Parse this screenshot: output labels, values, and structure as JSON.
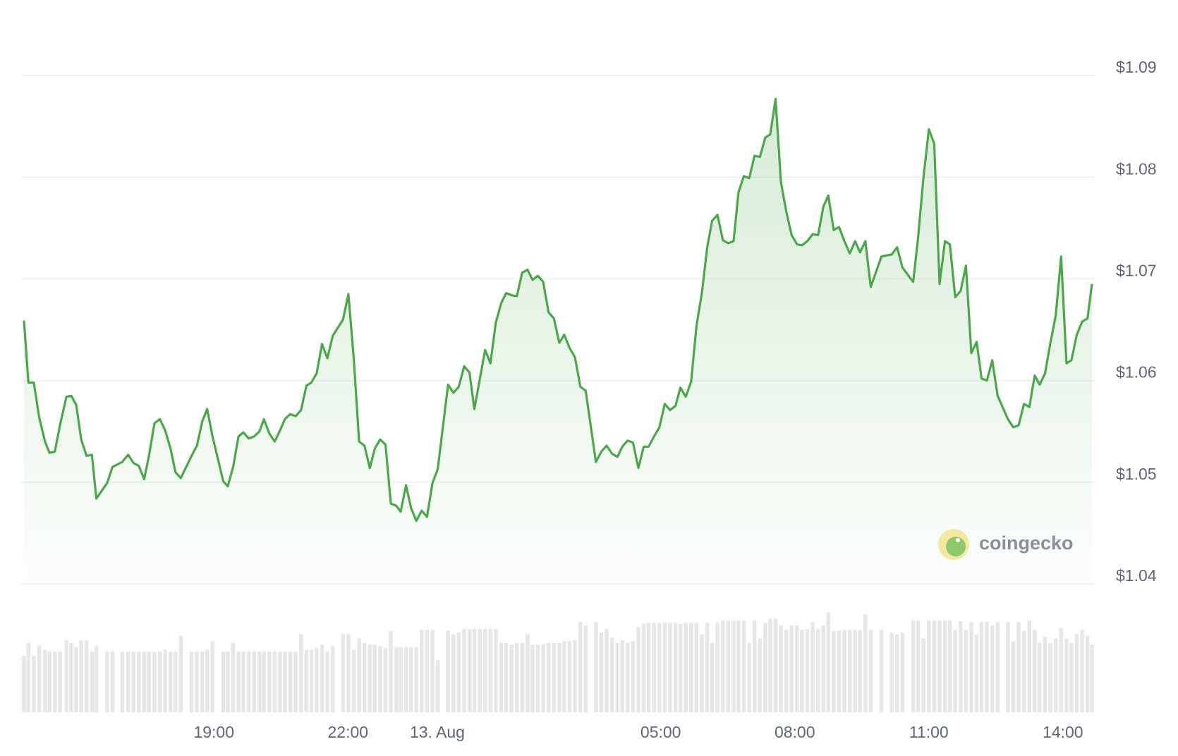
{
  "chart_data": {
    "type": "line",
    "watermark": "coingecko",
    "xlim": [
      14.75,
      38.65
    ],
    "xticks": [
      {
        "value": 19,
        "label": "19:00"
      },
      {
        "value": 22,
        "label": "22:00"
      },
      {
        "value": 24,
        "label": "13. Aug"
      },
      {
        "value": 29,
        "label": "05:00"
      },
      {
        "value": 32,
        "label": "08:00"
      },
      {
        "value": 35,
        "label": "11:00"
      },
      {
        "value": 38,
        "label": "14:00"
      }
    ],
    "ylim": [
      1.04,
      1.09
    ],
    "yticks": [
      {
        "value": 1.04,
        "label": "$1.04"
      },
      {
        "value": 1.05,
        "label": "$1.05"
      },
      {
        "value": 1.06,
        "label": "$1.06"
      },
      {
        "value": 1.07,
        "label": "$1.07"
      },
      {
        "value": 1.08,
        "label": "$1.08"
      },
      {
        "value": 1.09,
        "label": "$1.09"
      }
    ],
    "grid": true,
    "x": [
      14.75,
      14.85,
      14.97,
      15.09,
      15.22,
      15.32,
      15.44,
      15.56,
      15.7,
      15.81,
      15.92,
      16.03,
      16.15,
      16.27,
      16.37,
      16.61,
      16.73,
      16.95,
      17.08,
      17.2,
      17.32,
      17.44,
      17.55,
      17.67,
      17.79,
      17.91,
      18.03,
      18.14,
      18.26,
      18.5,
      18.62,
      18.74,
      18.85,
      18.97,
      19.21,
      19.31,
      19.43,
      19.55,
      19.66,
      19.78,
      19.9,
      20.02,
      20.12,
      20.24,
      20.36,
      20.48,
      20.59,
      20.71,
      20.83,
      20.95,
      21.07,
      21.18,
      21.3,
      21.42,
      21.54,
      21.66,
      21.89,
      22.01,
      22.13,
      22.25,
      22.37,
      22.49,
      22.6,
      22.72,
      22.84,
      22.96,
      23.08,
      23.18,
      23.3,
      23.41,
      23.53,
      23.65,
      23.77,
      23.89,
      24.01,
      24.24,
      24.36,
      24.48,
      24.6,
      24.72,
      24.83,
      24.95,
      25.07,
      25.19,
      25.31,
      25.43,
      25.54,
      25.66,
      25.78,
      25.9,
      26.02,
      26.13,
      26.25,
      26.37,
      26.49,
      26.61,
      26.73,
      26.84,
      26.96,
      27.08,
      27.2,
      27.32,
      27.55,
      27.67,
      27.79,
      27.91,
      28.03,
      28.14,
      28.26,
      28.38,
      28.5,
      28.62,
      28.73,
      28.85,
      28.97,
      29.09,
      29.21,
      29.33,
      29.44,
      29.56,
      29.68,
      29.8,
      29.92,
      30.04,
      30.15,
      30.27,
      30.39,
      30.51,
      30.63,
      30.74,
      30.86,
      30.98,
      31.1,
      31.22,
      31.34,
      31.45,
      31.57,
      31.69,
      31.81,
      31.93,
      32.05,
      32.16,
      32.28,
      32.4,
      32.52,
      32.64,
      32.75,
      32.87,
      32.99,
      33.11,
      33.23,
      33.35,
      33.46,
      33.58,
      33.7,
      33.94,
      34.17,
      34.29,
      34.41,
      34.65,
      34.76,
      34.88,
      35.0,
      35.12,
      35.24,
      35.36,
      35.47,
      35.59,
      35.71,
      35.83,
      35.95,
      36.07,
      36.18,
      36.3,
      36.42,
      36.54,
      36.77,
      36.89,
      37.01,
      37.13,
      37.25,
      37.37,
      37.48,
      37.6,
      37.72,
      37.84,
      37.96,
      38.08,
      38.19,
      38.31,
      38.43,
      38.55,
      38.65
    ],
    "series": [
      {
        "color": "#4aa84a",
        "values": [
          1.0659,
          1.0598,
          1.0598,
          1.0564,
          1.054,
          1.0529,
          1.053,
          1.0557,
          1.0584,
          1.0585,
          1.0576,
          1.0542,
          1.0526,
          1.0527,
          1.0484,
          1.0499,
          1.0515,
          1.052,
          1.0527,
          1.0519,
          1.0516,
          1.0503,
          1.0527,
          1.0558,
          1.0562,
          1.0551,
          1.0533,
          1.051,
          1.0504,
          1.0526,
          1.0536,
          1.056,
          1.0572,
          1.0545,
          1.0501,
          1.0496,
          1.0515,
          1.0545,
          1.0549,
          1.0543,
          1.0545,
          1.055,
          1.0562,
          1.0548,
          1.054,
          1.0551,
          1.0562,
          1.0567,
          1.0565,
          1.0571,
          1.0595,
          1.0598,
          1.0607,
          1.0636,
          1.0622,
          1.0644,
          1.066,
          1.0685,
          1.0622,
          1.054,
          1.0536,
          1.0514,
          1.0533,
          1.0542,
          1.0537,
          1.0479,
          1.0477,
          1.0471,
          1.0497,
          1.0475,
          1.0462,
          1.0472,
          1.0466,
          1.0499,
          1.0513,
          1.0596,
          1.0588,
          1.0594,
          1.0614,
          1.0608,
          1.0572,
          1.0601,
          1.063,
          1.0617,
          1.0657,
          1.0676,
          1.0686,
          1.0684,
          1.0683,
          1.0706,
          1.0709,
          1.0699,
          1.0703,
          1.0697,
          1.0667,
          1.0661,
          1.0637,
          1.0645,
          1.0632,
          1.0623,
          1.0594,
          1.059,
          1.052,
          1.053,
          1.0536,
          1.0528,
          1.0525,
          1.0535,
          1.0541,
          1.0539,
          1.0514,
          1.0535,
          1.0535,
          1.0545,
          1.0554,
          1.0577,
          1.0571,
          1.0575,
          1.0593,
          1.0584,
          1.0599,
          1.0654,
          1.0686,
          1.0731,
          1.0757,
          1.0763,
          1.0738,
          1.0735,
          1.0737,
          1.0785,
          1.0801,
          1.0799,
          1.0821,
          1.082,
          1.0839,
          1.0842,
          1.0877,
          1.0795,
          1.0766,
          1.0743,
          1.0734,
          1.0733,
          1.0737,
          1.0744,
          1.0743,
          1.0771,
          1.0782,
          1.0748,
          1.0751,
          1.0737,
          1.0725,
          1.0737,
          1.0726,
          1.0737,
          1.0692,
          1.0722,
          1.0724,
          1.0731,
          1.0711,
          1.0697,
          1.0741,
          1.08,
          1.0847,
          1.0833,
          1.0695,
          1.0737,
          1.0734,
          1.0682,
          1.0688,
          1.0713,
          1.0627,
          1.0638,
          1.0602,
          1.06,
          1.062,
          1.0585,
          1.0562,
          1.0554,
          1.0556,
          1.0577,
          1.0574,
          1.0605,
          1.0596,
          1.0607,
          1.0637,
          1.0664,
          1.0722,
          1.0617,
          1.062,
          1.0645,
          1.0658,
          1.0661,
          1.0695
        ]
      }
    ],
    "volume": {
      "color": "#e6e7ea",
      "ylim": [
        0,
        130
      ],
      "values": [
        65,
        80,
        65,
        77,
        72,
        70,
        70,
        70,
        83,
        80,
        75,
        83,
        83,
        70,
        76,
        70,
        70,
        70,
        70,
        70,
        70,
        70,
        70,
        70,
        70,
        72,
        70,
        70,
        88,
        70,
        70,
        70,
        72,
        82,
        70,
        70,
        80,
        70,
        70,
        70,
        70,
        70,
        70,
        70,
        70,
        70,
        70,
        70,
        70,
        90,
        72,
        72,
        74,
        78,
        70,
        76,
        90,
        90,
        72,
        85,
        80,
        78,
        78,
        76,
        74,
        94,
        75,
        75,
        75,
        75,
        75,
        95,
        95,
        95,
        60,
        94,
        90,
        92,
        96,
        96,
        96,
        96,
        96,
        96,
        96,
        80,
        80,
        78,
        80,
        80,
        90,
        78,
        78,
        78,
        80,
        80,
        80,
        82,
        82,
        83,
        104,
        100,
        104,
        92,
        96,
        86,
        80,
        83,
        80,
        82,
        98,
        102,
        103,
        103,
        103,
        103,
        103,
        103,
        102,
        103,
        103,
        103,
        90,
        103,
        80,
        103,
        106,
        106,
        106,
        106,
        106,
        80,
        106,
        85,
        103,
        108,
        108,
        100,
        95,
        100,
        100,
        95,
        96,
        104,
        96,
        100,
        115,
        94,
        94,
        95,
        95,
        95,
        95,
        113,
        95,
        95,
        92,
        90,
        92,
        106,
        106,
        85,
        106,
        106,
        106,
        106,
        106,
        95,
        105,
        95,
        104,
        90,
        104,
        104,
        100,
        104,
        104,
        82,
        104,
        94,
        106,
        95,
        80,
        87,
        80,
        85,
        97,
        85,
        80,
        90,
        95,
        88,
        78
      ]
    }
  }
}
